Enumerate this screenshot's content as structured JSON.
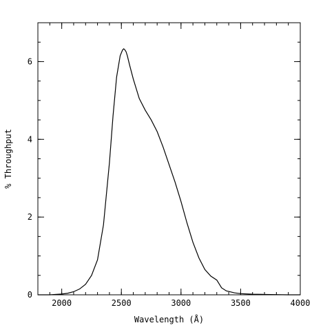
{
  "chart_data": {
    "type": "line",
    "xlabel": "Wavelength (Å)",
    "ylabel": "% Throughput",
    "xlim": [
      1800,
      4000
    ],
    "ylim": [
      0,
      7
    ],
    "x_ticks": [
      2000,
      2500,
      3000,
      3500,
      4000
    ],
    "x_tick_labels": [
      "2000",
      "2500",
      "3000",
      "3500",
      "4000"
    ],
    "x_minor_step": 100,
    "y_ticks": [
      0,
      2,
      4,
      6
    ],
    "y_tick_labels": [
      "0",
      "2",
      "4",
      "6"
    ],
    "y_minor_step": 0.5,
    "grid": false,
    "series": [
      {
        "x": [
          1800,
          1900,
          2000,
          2050,
          2100,
          2150,
          2200,
          2250,
          2300,
          2350,
          2400,
          2430,
          2460,
          2490,
          2510,
          2520,
          2530,
          2540,
          2550,
          2570,
          2600,
          2650,
          2700,
          2750,
          2800,
          2850,
          2900,
          2950,
          3000,
          3050,
          3100,
          3150,
          3200,
          3250,
          3300,
          3320,
          3340,
          3380,
          3450,
          3500,
          3600,
          3700,
          3800,
          3900,
          4000
        ],
        "y": [
          0.0,
          0.0,
          0.02,
          0.04,
          0.08,
          0.15,
          0.27,
          0.5,
          0.9,
          1.8,
          3.4,
          4.6,
          5.6,
          6.15,
          6.3,
          6.33,
          6.3,
          6.25,
          6.15,
          5.9,
          5.55,
          5.05,
          4.75,
          4.5,
          4.2,
          3.8,
          3.35,
          2.9,
          2.4,
          1.85,
          1.35,
          0.95,
          0.65,
          0.48,
          0.38,
          0.28,
          0.18,
          0.1,
          0.05,
          0.03,
          0.015,
          0.01,
          0.005,
          0.0,
          0.0
        ]
      }
    ]
  }
}
